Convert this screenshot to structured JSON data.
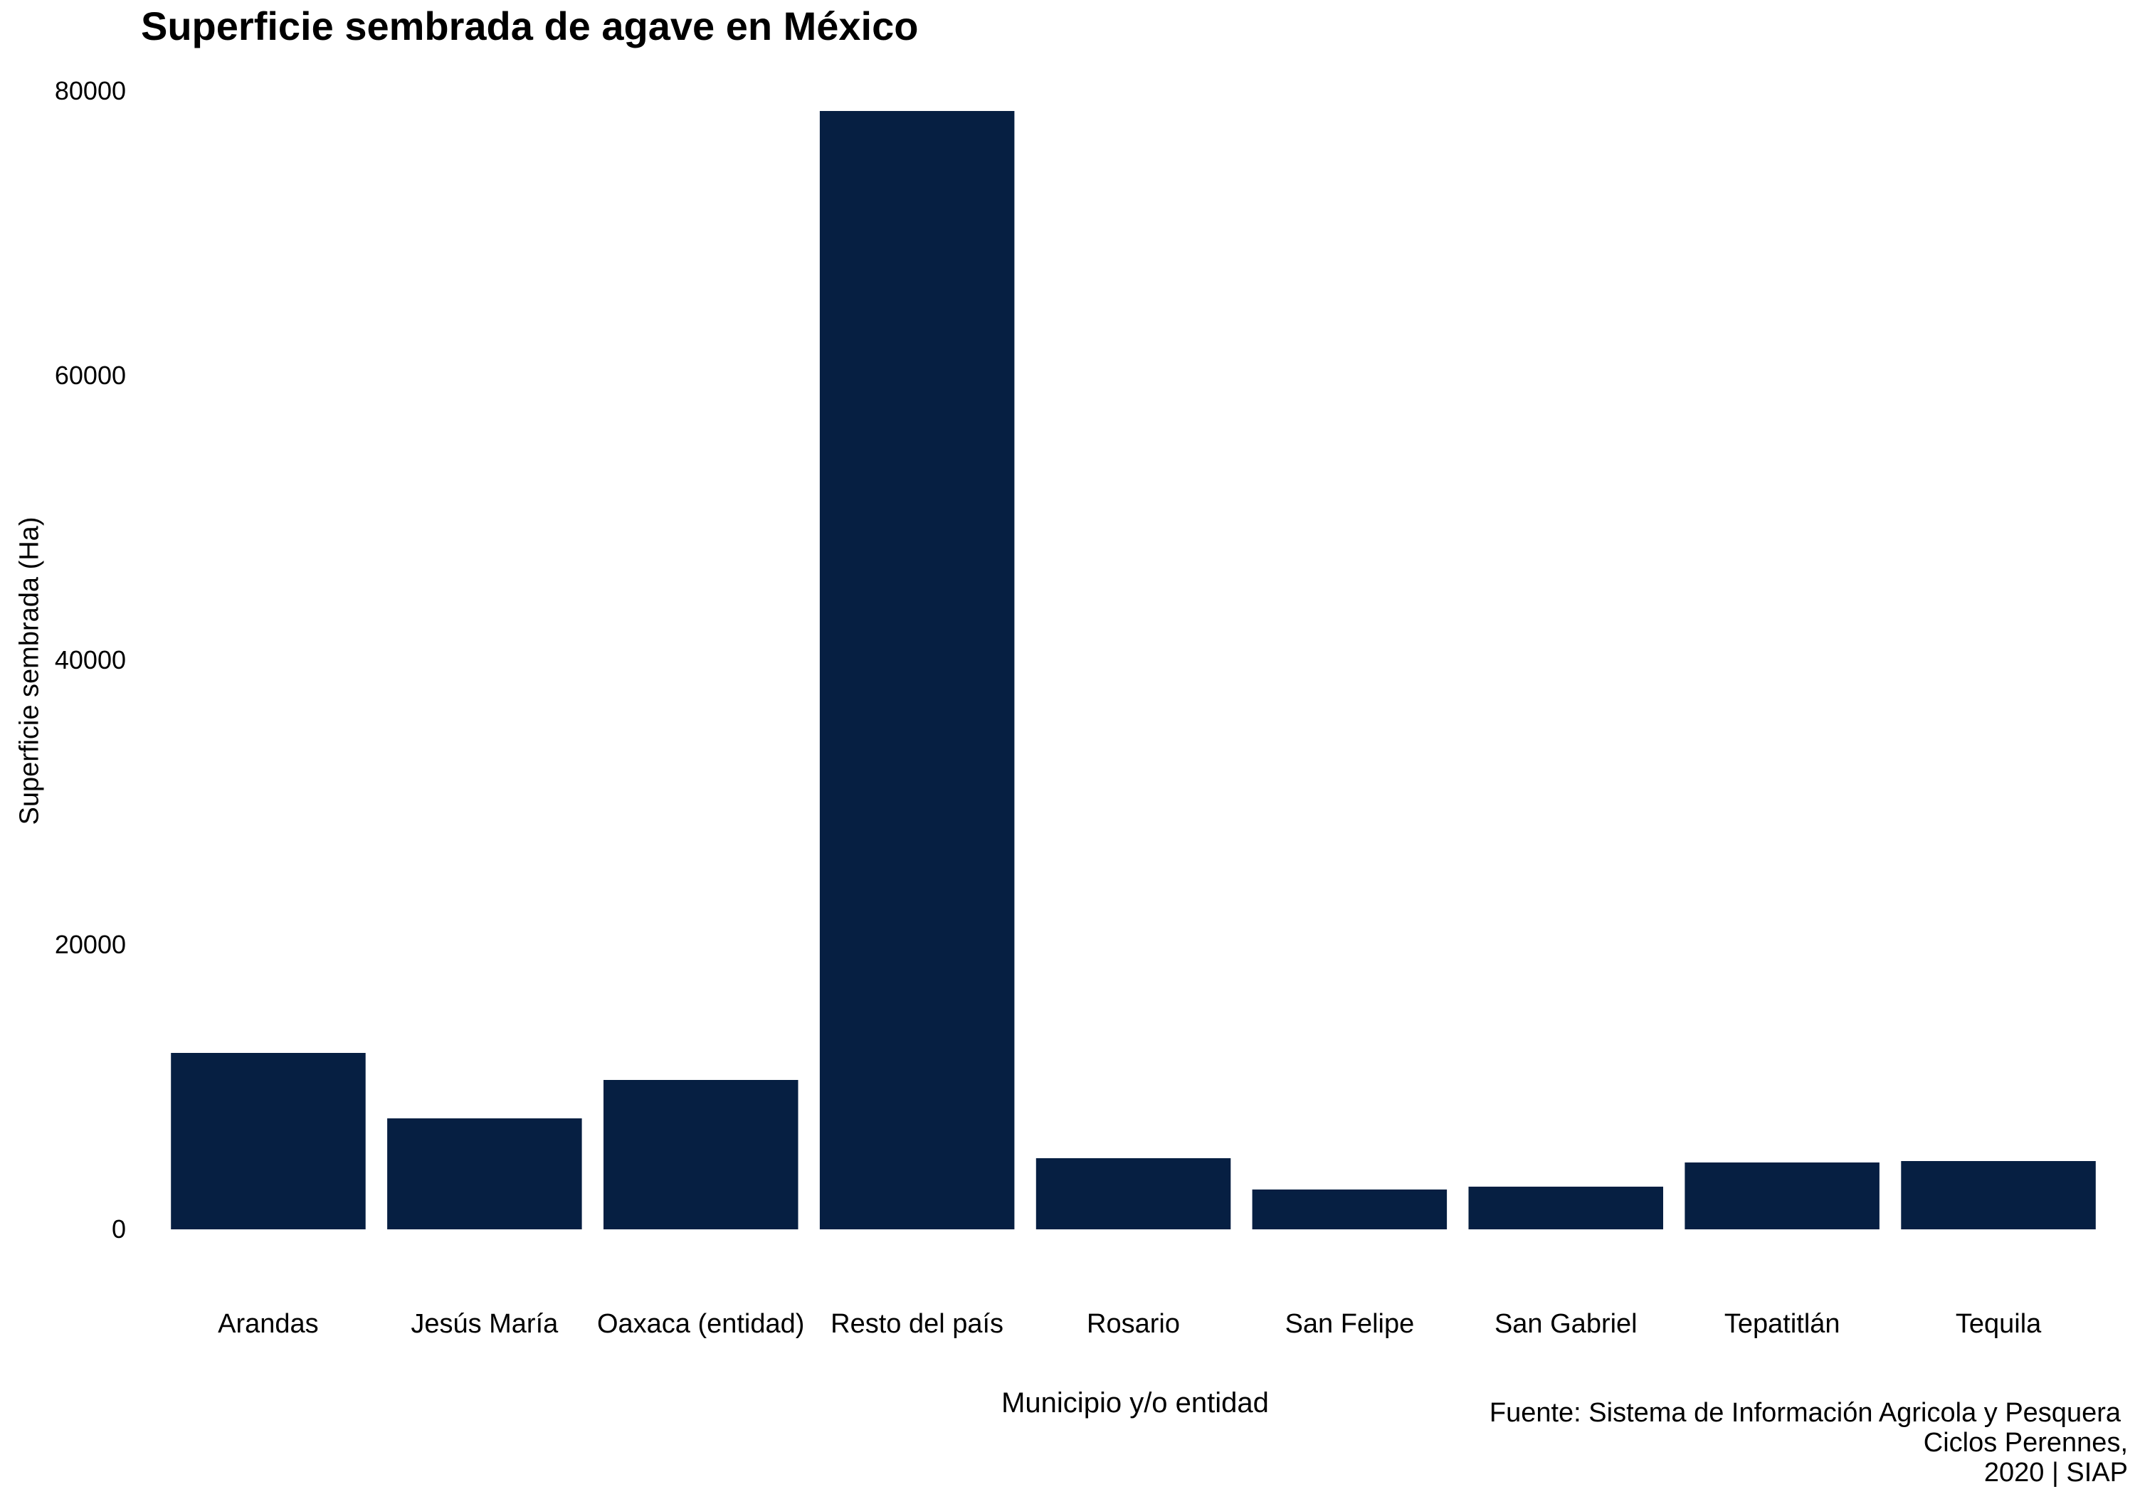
{
  "chart_data": {
    "type": "bar",
    "title": "Superficie sembrada de agave en México",
    "xlabel": "Municipio y/o entidad",
    "ylabel": "Superficie sembrada (Ha)",
    "categories": [
      "Arandas",
      "Jesús María",
      "Oaxaca (entidad)",
      "Resto del país",
      "Rosario",
      "San Felipe",
      "San Gabriel",
      "Tepatitlán",
      "Tequila"
    ],
    "values": [
      12400,
      7800,
      10500,
      78600,
      5000,
      2800,
      3000,
      4700,
      4800
    ],
    "ylim": [
      0,
      80000
    ],
    "yticks": [
      "0",
      "20000",
      "40000",
      "60000",
      "80000"
    ],
    "grid": false,
    "bar_color": "#061f42",
    "caption": [
      "Fuente: Sistema de Información Agricola y Pesquera",
      "Ciclos Perennes,",
      "2020 | SIAP"
    ]
  }
}
